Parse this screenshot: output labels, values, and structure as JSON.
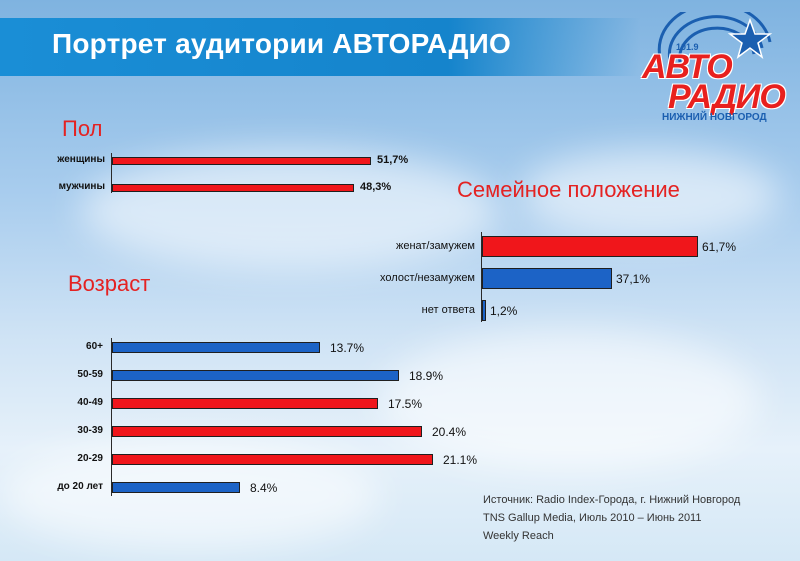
{
  "header": {
    "title": "Портрет аудитории АВТОРАДИО"
  },
  "logo": {
    "frequency": "101.9",
    "brand_top": "АВТО",
    "brand_bottom": "РАДИО",
    "city": "НИЖНИЙ НОВГОРОД"
  },
  "colors": {
    "red": "#f0161b",
    "blue": "#1c63c6",
    "title_red": "#e42222"
  },
  "chart_data": [
    {
      "type": "bar",
      "orientation": "horizontal",
      "title": "Пол",
      "categories": [
        "женщины",
        "мужчины"
      ],
      "values": [
        51.7,
        48.3
      ],
      "value_labels": [
        "51,7%",
        "48,3%"
      ],
      "colors": [
        "#f0161b",
        "#f0161b"
      ]
    },
    {
      "type": "bar",
      "orientation": "horizontal",
      "title": "Семейное положение",
      "categories": [
        "женат/замужем",
        "холост/незамужем",
        "нет ответа"
      ],
      "values": [
        61.7,
        37.1,
        1.2
      ],
      "value_labels": [
        "61,7%",
        "37,1%",
        "1,2%"
      ],
      "colors": [
        "#f0161b",
        "#1c63c6",
        "#1c63c6"
      ]
    },
    {
      "type": "bar",
      "orientation": "horizontal",
      "title": "Возраст",
      "categories": [
        "60+",
        "50-59",
        "40-49",
        "30-39",
        "20-29",
        "до 20 лет"
      ],
      "values": [
        13.7,
        18.9,
        17.5,
        20.4,
        21.1,
        8.4
      ],
      "value_labels": [
        "13.7%",
        "18.9%",
        "17.5%",
        "20.4%",
        "21.1%",
        "8.4%"
      ],
      "colors": [
        "#1c63c6",
        "#1c63c6",
        "#f0161b",
        "#f0161b",
        "#f0161b",
        "#1c63c6"
      ]
    }
  ],
  "source": {
    "line1": "Источник: Radio Index-Города, г. Нижний Новгород",
    "line2": "TNS Gallup Media,  Июль 2010 – Июнь 2011",
    "line3": "Weekly Reach"
  }
}
